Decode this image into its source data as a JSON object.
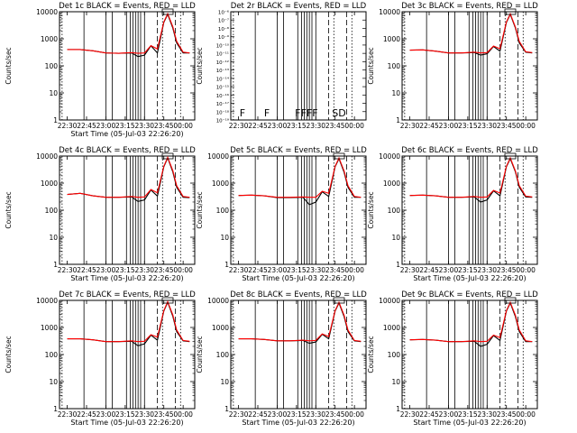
{
  "figure": {
    "xlabel": "Start Time (05-Jul-03 22:26:20)",
    "ylabel": "Counts/sec",
    "x_tick_labels": [
      "22:30",
      "22:45",
      "23:00",
      "23:15",
      "23:30",
      "23:45",
      "00:00"
    ],
    "y_tick_labels_log": [
      "1",
      "10",
      "100",
      "1000",
      "10000"
    ],
    "y_tick_labels_small": [
      "10⁻⁶",
      "10⁻⁷",
      "10⁻⁸",
      "10⁻⁹",
      "10⁻¹⁰",
      "10⁻¹¹",
      "10⁻¹²",
      "10⁻¹³",
      "10⁻¹⁴",
      "10⁻¹⁵",
      "10⁻¹⁶",
      "10⁻¹⁷",
      "10⁻¹⁸",
      "10⁻¹⁹"
    ],
    "colors": {
      "events": "#000000",
      "lld": "#ff0000"
    }
  },
  "chart_data": [
    {
      "type": "line",
      "title": "Det 1c BLACK = Events, RED = LLD",
      "xlabel": "Start Time (05-Jul-03 22:26:20)",
      "ylabel": "Counts/sec",
      "scale": "log",
      "ylim": [
        1,
        10000
      ],
      "x": [
        "22:30",
        "22:40",
        "22:50",
        "23:00",
        "23:10",
        "23:20",
        "23:25",
        "23:30",
        "23:35",
        "23:40",
        "23:45",
        "23:48",
        "23:52",
        "23:55",
        "00:00",
        "00:05"
      ],
      "series": [
        {
          "name": "Events",
          "values": [
            400,
            400,
            360,
            300,
            290,
            300,
            220,
            250,
            550,
            300,
            4000,
            8000,
            2500,
            700,
            300,
            300
          ]
        },
        {
          "name": "LLD",
          "values": [
            400,
            400,
            360,
            300,
            290,
            310,
            290,
            300,
            560,
            420,
            4200,
            8500,
            2800,
            800,
            320,
            300
          ]
        }
      ]
    },
    {
      "type": "line",
      "title": "Det 2r BLACK = Events, RED = LLD",
      "xlabel": "",
      "ylabel": "Counts/sec",
      "scale": "log",
      "ylim": [
        1e-19,
        1e-06
      ],
      "markers": [
        "F",
        "F",
        "F",
        "FFF",
        "SD"
      ],
      "series": []
    },
    {
      "type": "line",
      "title": "Det 3c BLACK = Events, RED = LLD",
      "xlabel": "",
      "ylabel": "Counts/sec",
      "scale": "log",
      "ylim": [
        1,
        10000
      ],
      "x": [
        "22:30",
        "22:40",
        "22:50",
        "23:00",
        "23:10",
        "23:20",
        "23:25",
        "23:30",
        "23:35",
        "23:40",
        "23:45",
        "23:48",
        "23:52",
        "23:55",
        "00:00",
        "00:05"
      ],
      "series": [
        {
          "name": "Events",
          "values": [
            380,
            390,
            350,
            300,
            300,
            310,
            250,
            280,
            520,
            350,
            4000,
            8000,
            2500,
            700,
            320,
            300
          ]
        },
        {
          "name": "LLD",
          "values": [
            380,
            390,
            350,
            300,
            300,
            320,
            300,
            310,
            540,
            430,
            4200,
            8400,
            2700,
            800,
            330,
            310
          ]
        }
      ]
    },
    {
      "type": "line",
      "title": "Det 4c BLACK = Events, RED = LLD",
      "xlabel": "Start Time (05-Jul-03 22:26:20)",
      "ylabel": "Counts/sec",
      "scale": "log",
      "ylim": [
        1,
        10000
      ],
      "x": [
        "22:30",
        "22:40",
        "22:50",
        "23:00",
        "23:10",
        "23:20",
        "23:25",
        "23:30",
        "23:35",
        "23:40",
        "23:45",
        "23:48",
        "23:52",
        "23:55",
        "00:00",
        "00:05"
      ],
      "series": [
        {
          "name": "Events",
          "values": [
            380,
            420,
            340,
            300,
            300,
            310,
            210,
            240,
            560,
            330,
            4000,
            8500,
            2600,
            700,
            300,
            290
          ]
        },
        {
          "name": "LLD",
          "values": [
            380,
            420,
            340,
            300,
            300,
            320,
            300,
            310,
            580,
            440,
            4200,
            9000,
            2900,
            800,
            320,
            300
          ]
        }
      ]
    },
    {
      "type": "line",
      "title": "Det 5c BLACK = Events, RED = LLD",
      "xlabel": "Start Time (05-Jul-03 22:26:20)",
      "ylabel": "Counts/sec",
      "scale": "log",
      "ylim": [
        1,
        10000
      ],
      "x": [
        "22:30",
        "22:40",
        "22:50",
        "23:00",
        "23:10",
        "23:20",
        "23:25",
        "23:30",
        "23:35",
        "23:40",
        "23:45",
        "23:48",
        "23:52",
        "23:55",
        "00:00",
        "00:05"
      ],
      "series": [
        {
          "name": "Events",
          "values": [
            350,
            360,
            340,
            290,
            290,
            300,
            160,
            200,
            480,
            320,
            4000,
            8000,
            2500,
            700,
            300,
            300
          ]
        },
        {
          "name": "LLD",
          "values": [
            350,
            360,
            340,
            300,
            300,
            310,
            300,
            300,
            500,
            420,
            4200,
            8500,
            2800,
            800,
            320,
            300
          ]
        }
      ]
    },
    {
      "type": "line",
      "title": "Det 6c BLACK = Events, RED = LLD",
      "xlabel": "Start Time (05-Jul-03 22:26:20)",
      "ylabel": "Counts/sec",
      "scale": "log",
      "ylim": [
        1,
        10000
      ],
      "x": [
        "22:30",
        "22:40",
        "22:50",
        "23:00",
        "23:10",
        "23:20",
        "23:25",
        "23:30",
        "23:35",
        "23:40",
        "23:45",
        "23:48",
        "23:52",
        "23:55",
        "00:00",
        "00:05"
      ],
      "series": [
        {
          "name": "Events",
          "values": [
            350,
            360,
            340,
            300,
            300,
            310,
            200,
            240,
            520,
            340,
            4000,
            8000,
            2600,
            700,
            310,
            300
          ]
        },
        {
          "name": "LLD",
          "values": [
            350,
            360,
            340,
            300,
            300,
            320,
            300,
            310,
            540,
            430,
            4200,
            8600,
            2800,
            800,
            330,
            310
          ]
        }
      ]
    },
    {
      "type": "line",
      "title": "Det 7c BLACK = Events, RED = LLD",
      "xlabel": "Start Time (05-Jul-03 22:26:20)",
      "ylabel": "Counts/sec",
      "scale": "log",
      "ylim": [
        1,
        10000
      ],
      "x": [
        "22:30",
        "22:40",
        "22:50",
        "23:00",
        "23:10",
        "23:20",
        "23:25",
        "23:30",
        "23:35",
        "23:40",
        "23:45",
        "23:48",
        "23:52",
        "23:55",
        "00:00",
        "00:05"
      ],
      "series": [
        {
          "name": "Events",
          "values": [
            380,
            380,
            350,
            300,
            300,
            310,
            210,
            250,
            520,
            340,
            4000,
            8500,
            2600,
            700,
            320,
            300
          ]
        },
        {
          "name": "LLD",
          "values": [
            380,
            380,
            350,
            300,
            300,
            320,
            300,
            310,
            540,
            440,
            4200,
            9000,
            2900,
            800,
            330,
            310
          ]
        }
      ]
    },
    {
      "type": "line",
      "title": "Det 8c BLACK = Events, RED = LLD",
      "xlabel": "Start Time (05-Jul-03 22:26:20)",
      "ylabel": "Counts/sec",
      "scale": "log",
      "ylim": [
        1,
        10000
      ],
      "x": [
        "22:30",
        "22:40",
        "22:50",
        "23:00",
        "23:10",
        "23:20",
        "23:25",
        "23:30",
        "23:35",
        "23:40",
        "23:45",
        "23:48",
        "23:52",
        "23:55",
        "00:00",
        "00:05"
      ],
      "series": [
        {
          "name": "Events",
          "values": [
            380,
            380,
            360,
            320,
            320,
            330,
            260,
            290,
            560,
            380,
            4000,
            8000,
            2500,
            700,
            320,
            300
          ]
        },
        {
          "name": "LLD",
          "values": [
            380,
            380,
            360,
            320,
            320,
            340,
            320,
            330,
            580,
            460,
            4200,
            8500,
            2800,
            800,
            330,
            310
          ]
        }
      ]
    },
    {
      "type": "line",
      "title": "Det 9c BLACK = Events, RED = LLD",
      "xlabel": "Start Time (05-Jul-03 22:26:20)",
      "ylabel": "Counts/sec",
      "scale": "log",
      "ylim": [
        1,
        10000
      ],
      "x": [
        "22:30",
        "22:40",
        "22:50",
        "23:00",
        "23:10",
        "23:20",
        "23:25",
        "23:30",
        "23:35",
        "23:40",
        "23:45",
        "23:48",
        "23:52",
        "23:55",
        "00:00",
        "00:05"
      ],
      "series": [
        {
          "name": "Events",
          "values": [
            350,
            360,
            340,
            300,
            300,
            310,
            200,
            240,
            500,
            330,
            4000,
            8000,
            2500,
            700,
            300,
            300
          ]
        },
        {
          "name": "LLD",
          "values": [
            350,
            360,
            340,
            300,
            300,
            320,
            300,
            310,
            520,
            420,
            4200,
            8500,
            2800,
            800,
            320,
            300
          ]
        }
      ]
    }
  ]
}
